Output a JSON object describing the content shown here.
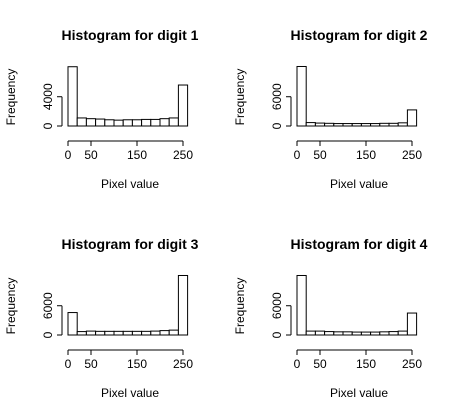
{
  "chart_data": [
    {
      "type": "histogram",
      "title": "Histogram for digit 1",
      "xlabel": "Pixel value",
      "ylabel": "Frequency",
      "bins": [
        0,
        20,
        40,
        60,
        80,
        100,
        120,
        140,
        160,
        180,
        200,
        220,
        240,
        260
      ],
      "values": [
        8100,
        1100,
        1000,
        950,
        850,
        800,
        850,
        850,
        900,
        900,
        1000,
        1100,
        5600
      ],
      "xlim": [
        0,
        260
      ],
      "ylim": [
        0,
        8200
      ],
      "xticks": [
        0,
        50,
        150,
        250
      ],
      "yticks": [
        0,
        4000
      ],
      "color": "#ffffff"
    },
    {
      "type": "histogram",
      "title": "Histogram for digit 2",
      "xlabel": "Pixel value",
      "ylabel": "Frequency",
      "bins": [
        0,
        20,
        40,
        60,
        80,
        100,
        120,
        140,
        160,
        180,
        200,
        220,
        240,
        260
      ],
      "values": [
        12200,
        700,
        600,
        550,
        500,
        500,
        500,
        500,
        500,
        550,
        550,
        650,
        3300
      ],
      "xlim": [
        0,
        260
      ],
      "ylim": [
        0,
        12300
      ],
      "xticks": [
        0,
        50,
        150,
        250
      ],
      "yticks": [
        0,
        6000
      ],
      "color": "#ffffff"
    },
    {
      "type": "histogram",
      "title": "Histogram for digit 3",
      "xlabel": "Pixel value",
      "ylabel": "Frequency",
      "bins": [
        0,
        20,
        40,
        60,
        80,
        100,
        120,
        140,
        160,
        180,
        200,
        220,
        240,
        260
      ],
      "values": [
        4600,
        700,
        800,
        750,
        750,
        750,
        750,
        750,
        750,
        800,
        900,
        1000,
        12200
      ],
      "xlim": [
        0,
        260
      ],
      "ylim": [
        0,
        12300
      ],
      "xticks": [
        0,
        50,
        150,
        250
      ],
      "yticks": [
        0,
        6000
      ],
      "color": "#ffffff"
    },
    {
      "type": "histogram",
      "title": "Histogram for digit 4",
      "xlabel": "Pixel value",
      "ylabel": "Frequency",
      "bins": [
        0,
        20,
        40,
        60,
        80,
        100,
        120,
        140,
        160,
        180,
        200,
        220,
        240,
        260
      ],
      "values": [
        12200,
        800,
        800,
        700,
        650,
        650,
        600,
        600,
        600,
        650,
        700,
        800,
        4500
      ],
      "xlim": [
        0,
        260
      ],
      "ylim": [
        0,
        12300
      ],
      "xticks": [
        0,
        50,
        150,
        250
      ],
      "yticks": [
        0,
        6000
      ],
      "color": "#ffffff"
    }
  ]
}
